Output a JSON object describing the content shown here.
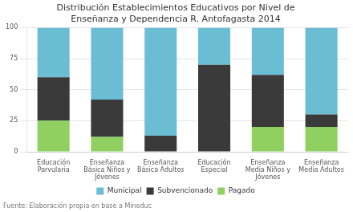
{
  "chart_data": {
    "type": "bar",
    "title": "Distribución Establecimientos Educativos por Nivel de\nEnseñanza y Dependencia R. Antofagasta 2014",
    "categories": [
      "Educación\nParvularia",
      "Enseñanza\nBásica Niños y\nJóvenes",
      "Enseñanza\nBásica Adultos",
      "Educación\nEspecial",
      "Enseñanza\nMedia Niños y\nJóvenes",
      "Enseñanza\nMedia Adultos"
    ],
    "series": [
      {
        "name": "Pagado",
        "color": "#90d060",
        "values": [
          25,
          12,
          0,
          0,
          20,
          20
        ]
      },
      {
        "name": "Subvencionado",
        "color": "#3a3a3a",
        "values": [
          35,
          30,
          13,
          70,
          42,
          10
        ]
      },
      {
        "name": "Municipal",
        "color": "#6bbdd4",
        "values": [
          40,
          58,
          87,
          30,
          38,
          70
        ]
      }
    ],
    "stacked": true,
    "ylim": [
      0,
      100
    ],
    "yticks": [
      0,
      25,
      50,
      75,
      100
    ],
    "grid": true,
    "legend": "bottom",
    "annotations": [
      "Fuente: Elaboración propia en base a Mineduc"
    ]
  }
}
